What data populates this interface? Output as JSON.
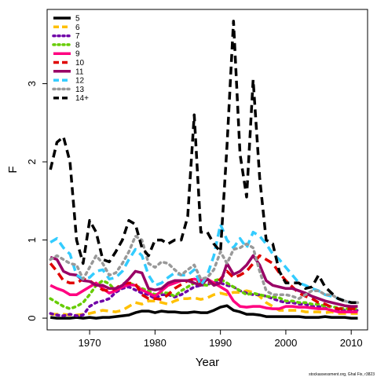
{
  "chart_data": {
    "type": "line",
    "xlabel": "Year",
    "ylabel": "F",
    "xlim": [
      1963.5,
      2012.5
    ],
    "ylim": [
      -0.15,
      3.95
    ],
    "xticks": [
      1970,
      1980,
      1990,
      2000,
      2010
    ],
    "yticks": [
      0,
      1,
      2,
      3
    ],
    "legend_position": "top-left",
    "credit": "stockassessment.org, Ghal Fix, r3823",
    "x": [
      1964,
      1965,
      1966,
      1967,
      1968,
      1969,
      1970,
      1971,
      1972,
      1973,
      1974,
      1975,
      1976,
      1977,
      1978,
      1979,
      1980,
      1981,
      1982,
      1983,
      1984,
      1985,
      1986,
      1987,
      1988,
      1989,
      1990,
      1991,
      1992,
      1993,
      1994,
      1995,
      1996,
      1997,
      1998,
      1999,
      2000,
      2001,
      2002,
      2003,
      2004,
      2005,
      2006,
      2007,
      2008,
      2009,
      2010,
      2011
    ],
    "series": [
      {
        "name": "5",
        "color": "#000000",
        "dash": "solid",
        "values": [
          0.01,
          0.0,
          0.0,
          0.0,
          0.01,
          0.0,
          0.01,
          0.0,
          0.01,
          0.01,
          0.02,
          0.03,
          0.04,
          0.07,
          0.09,
          0.09,
          0.07,
          0.09,
          0.08,
          0.08,
          0.07,
          0.07,
          0.08,
          0.07,
          0.07,
          0.1,
          0.14,
          0.16,
          0.1,
          0.08,
          0.05,
          0.05,
          0.04,
          0.02,
          0.02,
          0.02,
          0.02,
          0.02,
          0.02,
          0.01,
          0.01,
          0.01,
          0.02,
          0.01,
          0.01,
          0.01,
          0.0,
          0.0
        ]
      },
      {
        "name": "6",
        "color": "#FFC000",
        "dash": "dashed",
        "values": [
          0.05,
          0.05,
          0.05,
          0.04,
          0.04,
          0.05,
          0.06,
          0.08,
          0.1,
          0.09,
          0.08,
          0.1,
          0.15,
          0.2,
          0.18,
          0.22,
          0.22,
          0.2,
          0.18,
          0.22,
          0.25,
          0.25,
          0.26,
          0.24,
          0.26,
          0.3,
          0.32,
          0.3,
          0.33,
          0.33,
          0.35,
          0.33,
          0.28,
          0.2,
          0.15,
          0.1,
          0.1,
          0.1,
          0.1,
          0.08,
          0.08,
          0.08,
          0.07,
          0.08,
          0.06,
          0.06,
          0.06,
          0.06
        ]
      },
      {
        "name": "7",
        "color": "#7000A8",
        "dash": "dotted",
        "values": [
          0.06,
          0.04,
          0.03,
          0.05,
          0.03,
          0.04,
          0.15,
          0.2,
          0.22,
          0.25,
          0.33,
          0.38,
          0.4,
          0.36,
          0.32,
          0.3,
          0.25,
          0.3,
          0.3,
          0.27,
          0.3,
          0.35,
          0.4,
          0.42,
          0.43,
          0.46,
          0.45,
          0.42,
          0.4,
          0.35,
          0.32,
          0.3,
          0.3,
          0.28,
          0.25,
          0.22,
          0.2,
          0.2,
          0.18,
          0.18,
          0.15,
          0.15,
          0.13,
          0.1,
          0.1,
          0.1,
          0.1,
          0.1
        ]
      },
      {
        "name": "8",
        "color": "#66CC00",
        "dash": "dotted",
        "values": [
          0.25,
          0.2,
          0.15,
          0.12,
          0.15,
          0.2,
          0.3,
          0.42,
          0.48,
          0.44,
          0.35,
          0.4,
          0.45,
          0.42,
          0.38,
          0.35,
          0.3,
          0.33,
          0.32,
          0.28,
          0.35,
          0.4,
          0.45,
          0.43,
          0.42,
          0.48,
          0.5,
          0.45,
          0.4,
          0.35,
          0.3,
          0.32,
          0.3,
          0.28,
          0.27,
          0.26,
          0.22,
          0.22,
          0.2,
          0.2,
          0.18,
          0.18,
          0.15,
          0.15,
          0.13,
          0.12,
          0.12,
          0.12
        ]
      },
      {
        "name": "9",
        "color": "#FF0080",
        "dash": "solid",
        "values": [
          0.42,
          0.38,
          0.35,
          0.3,
          0.3,
          0.35,
          0.4,
          0.45,
          0.38,
          0.32,
          0.35,
          0.4,
          0.43,
          0.42,
          0.36,
          0.32,
          0.28,
          0.35,
          0.42,
          0.45,
          0.48,
          0.48,
          0.5,
          0.48,
          0.5,
          0.45,
          0.4,
          0.35,
          0.22,
          0.15,
          0.14,
          0.15,
          0.15,
          0.13,
          0.12,
          0.12,
          0.15,
          0.15,
          0.14,
          0.14,
          0.13,
          0.12,
          0.12,
          0.1,
          0.08,
          0.08,
          0.08,
          0.08
        ]
      },
      {
        "name": "10",
        "color": "#E00000",
        "dash": "dashed",
        "values": [
          0.7,
          0.6,
          0.48,
          0.45,
          0.45,
          0.5,
          0.48,
          0.42,
          0.36,
          0.35,
          0.38,
          0.44,
          0.45,
          0.44,
          0.3,
          0.25,
          0.25,
          0.24,
          0.3,
          0.38,
          0.43,
          0.48,
          0.5,
          0.45,
          0.48,
          0.43,
          0.5,
          0.6,
          0.52,
          0.55,
          0.6,
          0.7,
          0.8,
          0.75,
          0.7,
          0.58,
          0.48,
          0.4,
          0.32,
          0.28,
          0.25,
          0.2,
          0.18,
          0.14,
          0.12,
          0.12,
          0.12,
          0.12
        ]
      },
      {
        "name": "11",
        "color": "#990066",
        "dash": "solid",
        "values": [
          0.78,
          0.75,
          0.6,
          0.56,
          0.55,
          0.48,
          0.47,
          0.42,
          0.42,
          0.38,
          0.38,
          0.42,
          0.5,
          0.6,
          0.58,
          0.38,
          0.36,
          0.38,
          0.45,
          0.48,
          0.48,
          0.48,
          0.45,
          0.42,
          0.5,
          0.42,
          0.45,
          0.7,
          0.56,
          0.6,
          0.68,
          0.8,
          0.68,
          0.48,
          0.42,
          0.4,
          0.38,
          0.38,
          0.35,
          0.32,
          0.28,
          0.25,
          0.22,
          0.2,
          0.18,
          0.16,
          0.15,
          0.15
        ]
      },
      {
        "name": "12",
        "color": "#33CCFF",
        "dash": "dashed",
        "values": [
          0.97,
          1.02,
          0.9,
          0.82,
          0.55,
          0.5,
          0.52,
          0.6,
          0.62,
          0.5,
          0.52,
          0.6,
          0.75,
          0.88,
          0.8,
          0.55,
          0.42,
          0.45,
          0.52,
          0.58,
          0.55,
          0.55,
          0.62,
          0.42,
          0.55,
          0.8,
          1.2,
          1.0,
          0.9,
          1.02,
          0.9,
          1.1,
          1.05,
          0.95,
          0.82,
          0.75,
          0.65,
          0.55,
          0.45,
          0.42,
          0.38,
          0.35,
          0.3,
          0.28,
          0.25,
          0.22,
          0.2,
          0.2
        ]
      },
      {
        "name": "13",
        "color": "#999999",
        "dash": "dotted",
        "values": [
          0.75,
          0.8,
          0.75,
          0.7,
          0.68,
          0.5,
          0.65,
          0.8,
          0.7,
          0.55,
          0.58,
          0.7,
          0.85,
          1.05,
          1.0,
          0.7,
          0.65,
          0.72,
          0.7,
          0.62,
          0.55,
          0.62,
          0.68,
          0.5,
          0.52,
          0.62,
          0.85,
          0.7,
          0.88,
          0.9,
          0.95,
          0.9,
          0.6,
          0.35,
          0.3,
          0.3,
          0.3,
          0.28,
          0.25,
          0.3,
          0.35,
          0.35,
          0.3,
          0.3,
          0.25,
          0.22,
          0.2,
          0.2
        ]
      },
      {
        "name": "14+",
        "color": "#000000",
        "dash": "dashed",
        "values": [
          1.9,
          2.25,
          2.32,
          2.0,
          1.0,
          0.7,
          1.25,
          1.1,
          0.75,
          0.72,
          0.85,
          1.0,
          1.25,
          1.2,
          0.9,
          0.8,
          1.0,
          1.0,
          0.95,
          1.0,
          1.0,
          1.3,
          2.6,
          1.1,
          1.1,
          0.95,
          0.85,
          2.2,
          3.8,
          2.1,
          1.55,
          3.05,
          1.8,
          1.0,
          0.95,
          0.6,
          0.45,
          0.45,
          0.45,
          0.38,
          0.4,
          0.55,
          0.4,
          0.32,
          0.25,
          0.22,
          0.2,
          0.2
        ]
      }
    ]
  }
}
